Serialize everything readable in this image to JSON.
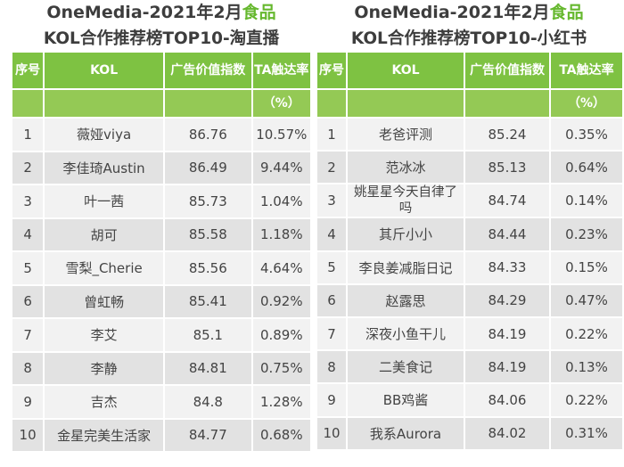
{
  "left": {
    "title_line1_a": "OneMedia-2021年2月",
    "title_line1_b": "食品",
    "title_line2": "KOL合作推荐榜TOP10-淘直播",
    "headers": {
      "rank": "序号",
      "kol": "KOL",
      "index": "广告价值指数",
      "ta": "TA触达率",
      "unit": "（%）"
    },
    "rows": [
      {
        "rank": "1",
        "kol": "薇娅viya",
        "index": "86.76",
        "ta": "10.57%"
      },
      {
        "rank": "2",
        "kol": "李佳琦Austin",
        "index": "86.49",
        "ta": "9.44%"
      },
      {
        "rank": "3",
        "kol": "叶一茜",
        "index": "85.73",
        "ta": "1.04%"
      },
      {
        "rank": "4",
        "kol": "胡可",
        "index": "85.58",
        "ta": "1.18%"
      },
      {
        "rank": "5",
        "kol": "雪梨_Cherie",
        "index": "85.56",
        "ta": "4.64%"
      },
      {
        "rank": "6",
        "kol": "曾虹畅",
        "index": "85.41",
        "ta": "0.92%"
      },
      {
        "rank": "7",
        "kol": "李艾",
        "index": "85.1",
        "ta": "0.89%"
      },
      {
        "rank": "8",
        "kol": "李静",
        "index": "84.81",
        "ta": "0.75%"
      },
      {
        "rank": "9",
        "kol": "吉杰",
        "index": "84.8",
        "ta": "1.28%"
      },
      {
        "rank": "10",
        "kol": "金星完美生活家",
        "index": "84.77",
        "ta": "0.68%"
      }
    ]
  },
  "right": {
    "title_line1_a": "OneMedia-2021年2月",
    "title_line1_b": "食品",
    "title_line2": "KOL合作推荐榜TOP10-小红书",
    "headers": {
      "rank": "序号",
      "kol": "KOL",
      "index": "广告价值指数",
      "ta": "TA触达率",
      "unit": "（%）"
    },
    "rows": [
      {
        "rank": "1",
        "kol": "老爸评测",
        "index": "85.24",
        "ta": "0.35%"
      },
      {
        "rank": "2",
        "kol": "范冰冰",
        "index": "85.13",
        "ta": "0.64%"
      },
      {
        "rank": "3",
        "kol": "姚星星今天自律了吗",
        "index": "84.74",
        "ta": "0.14%"
      },
      {
        "rank": "4",
        "kol": "其斤小小",
        "index": "84.44",
        "ta": "0.23%"
      },
      {
        "rank": "5",
        "kol": "李良姜减脂日记",
        "index": "84.33",
        "ta": "0.15%"
      },
      {
        "rank": "6",
        "kol": "赵露思",
        "index": "84.29",
        "ta": "0.47%"
      },
      {
        "rank": "7",
        "kol": "深夜小鱼干儿",
        "index": "84.19",
        "ta": "0.22%"
      },
      {
        "rank": "8",
        "kol": "二美食记",
        "index": "84.19",
        "ta": "0.13%"
      },
      {
        "rank": "9",
        "kol": "BB鸡酱",
        "index": "84.06",
        "ta": "0.22%"
      },
      {
        "rank": "10",
        "kol": "我系Aurora",
        "index": "84.02",
        "ta": "0.31%"
      }
    ]
  }
}
